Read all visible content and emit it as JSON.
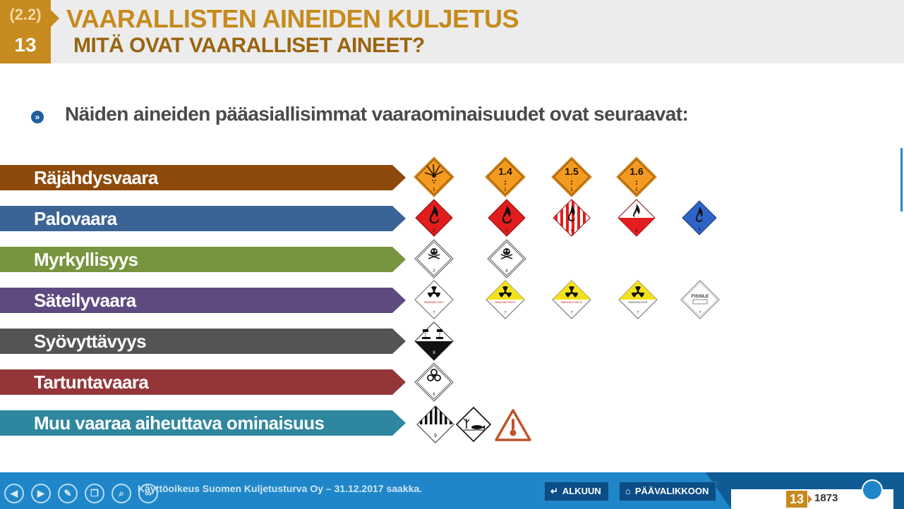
{
  "header": {
    "section_ref": "(2.2)",
    "slide_number": "13",
    "title": "VAARALLISTEN AINEIDEN KULJETUS",
    "subtitle": "MITÄ OVAT VAARALLISET AINEET?"
  },
  "bullet": {
    "icon": "double-chevron-icon",
    "text": "Näiden aineiden pääasiallisimmat vaaraominaisuudet ovat seuraavat:"
  },
  "categories": [
    {
      "label": "Räjähdysvaara",
      "color": "#8e4a0c"
    },
    {
      "label": "Palovaara",
      "color": "#3a6496"
    },
    {
      "label": "Myrkyllisyys",
      "color": "#77953e"
    },
    {
      "label": "Säteilyvaara",
      "color": "#5e4a80"
    },
    {
      "label": "Syövyttävyys",
      "color": "#545454"
    },
    {
      "label": "Tartuntavaara",
      "color": "#943639"
    },
    {
      "label": "Muu vaaraa aiheuttava ominaisuus",
      "color": "#2e879e"
    }
  ],
  "placards": {
    "explosive": [
      {
        "text": "",
        "class_num": "1",
        "icon": "explosion-icon"
      },
      {
        "text": "1.4",
        "class_num": "1"
      },
      {
        "text": "1.5",
        "class_num": "1"
      },
      {
        "text": "1.6",
        "class_num": "1"
      }
    ],
    "fire": [
      {
        "icon": "flame-icon",
        "class_num": "2"
      },
      {
        "icon": "flame-icon",
        "class_num": "3"
      },
      {
        "icon": "flame-icon",
        "class_num": "4"
      },
      {
        "icon": "flame-icon",
        "class_num": "4"
      },
      {
        "icon": "flame-icon",
        "class_num": "4"
      }
    ],
    "toxic": [
      {
        "icon": "skull-icon",
        "class_num": "2"
      },
      {
        "icon": "skull-icon",
        "class_num": "6"
      }
    ],
    "radiation": [
      {
        "icon": "radiation-icon",
        "label": "RADIOACTIVE I",
        "class_num": "7"
      },
      {
        "icon": "radiation-icon",
        "label": "RADIOACTIVE II",
        "class_num": "7"
      },
      {
        "icon": "radiation-icon",
        "label": "RADIOACTIVE III",
        "class_num": "7"
      },
      {
        "icon": "radiation-icon",
        "label": "RADIOACTIVE",
        "class_num": "7"
      },
      {
        "label": "FISSILE",
        "class_num": "7"
      }
    ],
    "corrosive": [
      {
        "icon": "corrosion-icon",
        "class_num": "8"
      }
    ],
    "infectious": [
      {
        "icon": "biohazard-icon",
        "class_num": "6"
      }
    ],
    "other": [
      {
        "icon": "stripes-icon",
        "class_num": "9"
      },
      {
        "icon": "environment-icon"
      },
      {
        "icon": "thermometer-icon"
      }
    ]
  },
  "footer": {
    "license": "Käyttöoikeus Suomen Kuljetusturva Oy – 31.12.2017 saakka.",
    "start_button": "ALKUUN",
    "menu_button": "PÄÄVALIKKOON",
    "slide_current": "13",
    "slide_total": "1873",
    "nav_icons": [
      "prev-icon",
      "next-icon",
      "pen-icon",
      "windows-icon",
      "search-icon",
      "link-icon"
    ]
  }
}
